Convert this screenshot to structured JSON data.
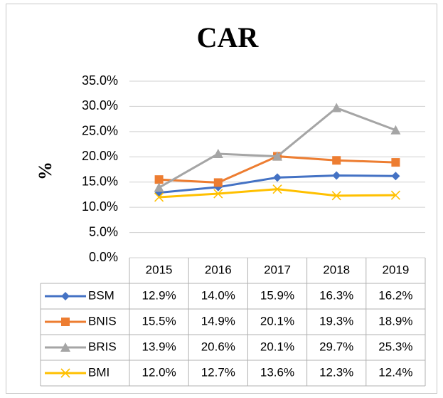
{
  "chart_data": {
    "type": "line",
    "title": "CAR",
    "y_label": "%",
    "categories": [
      "2015",
      "2016",
      "2017",
      "2018",
      "2019"
    ],
    "series": [
      {
        "name": "BSM",
        "color": "#4472c4",
        "marker": "diamond",
        "values": [
          12.9,
          14.0,
          15.9,
          16.3,
          16.2
        ],
        "value_labels": [
          "12.9%",
          "14.0%",
          "15.9%",
          "16.3%",
          "16.2%"
        ]
      },
      {
        "name": "BNIS",
        "color": "#ed7d31",
        "marker": "square",
        "values": [
          15.5,
          14.9,
          20.1,
          19.3,
          18.9
        ],
        "value_labels": [
          "15.5%",
          "14.9%",
          "20.1%",
          "19.3%",
          "18.9%"
        ]
      },
      {
        "name": "BRIS",
        "color": "#a5a5a5",
        "marker": "triangle",
        "values": [
          13.9,
          20.6,
          20.1,
          29.7,
          25.3
        ],
        "value_labels": [
          "13.9%",
          "20.6%",
          "20.1%",
          "29.7%",
          "25.3%"
        ]
      },
      {
        "name": "BMI",
        "color": "#ffc000",
        "marker": "x",
        "values": [
          12.0,
          12.7,
          13.6,
          12.3,
          12.4
        ],
        "value_labels": [
          "12.0%",
          "12.7%",
          "13.6%",
          "12.3%",
          "12.4%"
        ]
      }
    ],
    "ylim": [
      0,
      35
    ],
    "yticks": [
      {
        "value": 0,
        "label": "0.0%"
      },
      {
        "value": 5,
        "label": "5.0%"
      },
      {
        "value": 10,
        "label": "10.0%"
      },
      {
        "value": 15,
        "label": "15.0%"
      },
      {
        "value": 20,
        "label": "20.0%"
      },
      {
        "value": 25,
        "label": "25.0%"
      },
      {
        "value": 30,
        "label": "30.0%"
      },
      {
        "value": 35,
        "label": "35.0%"
      }
    ],
    "grid": true
  }
}
